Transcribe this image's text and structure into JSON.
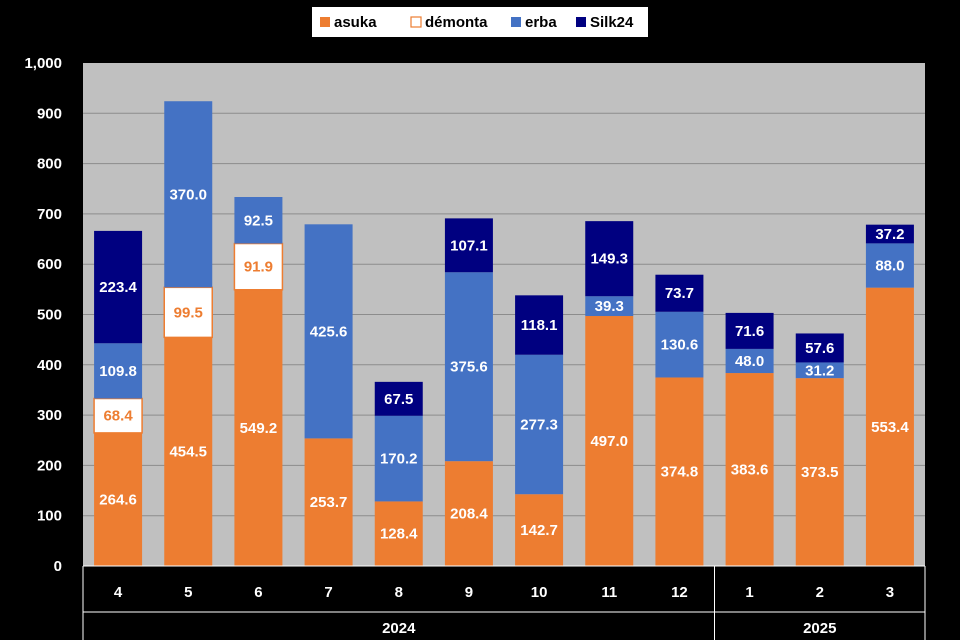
{
  "chart_data": {
    "type": "bar",
    "stacked": true,
    "categories": [
      "4",
      "5",
      "6",
      "7",
      "8",
      "9",
      "10",
      "11",
      "12",
      "1",
      "2",
      "3"
    ],
    "groups": [
      {
        "label": "2024",
        "from": 0,
        "to": 8
      },
      {
        "label": "2025",
        "from": 9,
        "to": 11
      }
    ],
    "series": [
      {
        "name": "asuka",
        "color": "#ED7D31",
        "label_color": "#FFFFFF",
        "values": [
          264.6,
          454.5,
          549.2,
          253.7,
          128.4,
          208.4,
          142.7,
          497.0,
          374.8,
          383.6,
          373.5,
          553.4
        ]
      },
      {
        "name": "démonta",
        "color": "#FFFFFF",
        "border": "#ED7D31",
        "label_color": "#ED7D31",
        "values": [
          68.4,
          99.5,
          91.9,
          null,
          null,
          null,
          null,
          null,
          null,
          null,
          null,
          null
        ]
      },
      {
        "name": "erba",
        "color": "#4472C4",
        "label_color": "#FFFFFF",
        "values": [
          109.8,
          370.0,
          92.5,
          425.6,
          170.2,
          375.6,
          277.3,
          39.3,
          130.6,
          48.0,
          31.2,
          88.0
        ]
      },
      {
        "name": "Silk24",
        "color": "#000080",
        "label_color": "#FFFFFF",
        "values": [
          223.4,
          null,
          null,
          null,
          67.5,
          107.1,
          118.1,
          149.3,
          73.7,
          71.6,
          57.6,
          37.2
        ]
      }
    ],
    "data_labels": {
      "asuka": [
        "264.6",
        "454.5",
        "549.2",
        "253.7",
        "128.4",
        "208.4",
        "142.7",
        "497.0",
        "374.8",
        "383.6",
        "373.5",
        "553.4"
      ],
      "démonta": [
        "68.4",
        "99.5",
        "91.9",
        null,
        null,
        null,
        null,
        null,
        null,
        null,
        null,
        null
      ],
      "erba": [
        "109.8",
        "370.0",
        "92.5",
        "425.6",
        "170.2",
        "375.6",
        "277.3",
        "39.3",
        "130.6",
        "48.0",
        "31.2",
        "88.0"
      ],
      "Silk24": [
        "223.4",
        null,
        null,
        null,
        "67.5",
        "107.1",
        "118.1",
        "149.3",
        "73.7",
        "71.6",
        "57.6",
        "37.2"
      ]
    },
    "yticks": [
      "0",
      "100",
      "200",
      "300",
      "400",
      "500",
      "600",
      "700",
      "800",
      "900",
      "1,000"
    ],
    "ylim": [
      0,
      1000
    ],
    "grid": true,
    "legend_position": "top",
    "plot_background": "#C0C0C0",
    "page_background": "#000000"
  }
}
